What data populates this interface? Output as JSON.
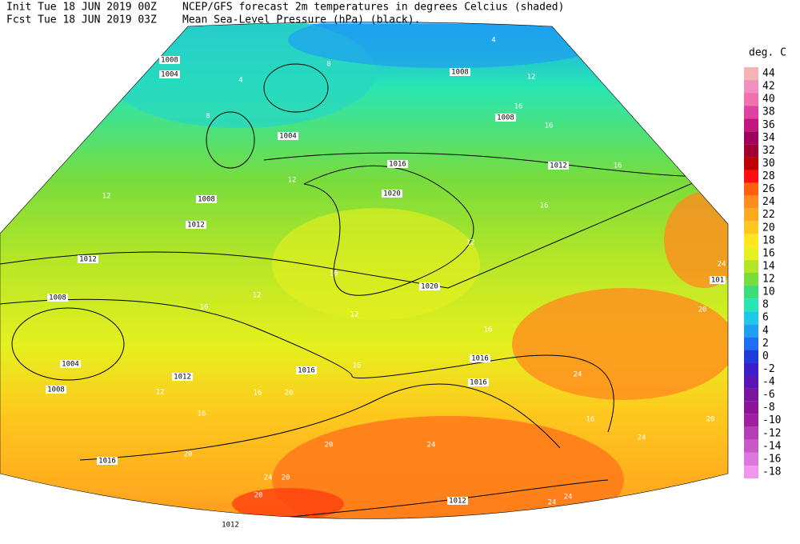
{
  "header": {
    "init": "Init  Tue 18 JUN 2019 00Z",
    "fcst": "Fcst Tue 18 JUN 2019 03Z",
    "line1": "NCEP/GFS forecast 2m temperatures in degrees Celcius (shaded)",
    "line2": "Mean Sea-Level Pressure (hPa) (black)."
  },
  "legend": {
    "title": "deg. C",
    "levels": [
      {
        "value": 44,
        "color": "#f5b4b4"
      },
      {
        "value": 42,
        "color": "#f090c0"
      },
      {
        "value": 40,
        "color": "#f070b0"
      },
      {
        "value": 38,
        "color": "#e040a0"
      },
      {
        "value": 36,
        "color": "#c01880"
      },
      {
        "value": 34,
        "color": "#a00060"
      },
      {
        "value": 32,
        "color": "#a00030"
      },
      {
        "value": 30,
        "color": "#c00000"
      },
      {
        "value": 28,
        "color": "#ff1010"
      },
      {
        "value": 26,
        "color": "#ff6010"
      },
      {
        "value": 24,
        "color": "#ff8c1e"
      },
      {
        "value": 22,
        "color": "#ffaa1e"
      },
      {
        "value": 20,
        "color": "#ffc81e"
      },
      {
        "value": 18,
        "color": "#ffe61e"
      },
      {
        "value": 16,
        "color": "#e6f01e"
      },
      {
        "value": 14,
        "color": "#b4e628"
      },
      {
        "value": 12,
        "color": "#78dc3c"
      },
      {
        "value": 10,
        "color": "#3cdc78"
      },
      {
        "value": 8,
        "color": "#28e6b4"
      },
      {
        "value": 6,
        "color": "#1ec8e6"
      },
      {
        "value": 4,
        "color": "#1ea0f0"
      },
      {
        "value": 2,
        "color": "#1e6ef0"
      },
      {
        "value": 0,
        "color": "#1e3cdc"
      },
      {
        "value": -2,
        "color": "#3c1ec8"
      },
      {
        "value": -4,
        "color": "#5a14b4"
      },
      {
        "value": -6,
        "color": "#7814a0"
      },
      {
        "value": -8,
        "color": "#8c1496"
      },
      {
        "value": -10,
        "color": "#a01ea0"
      },
      {
        "value": -12,
        "color": "#b43cb4"
      },
      {
        "value": -14,
        "color": "#c85ac8"
      },
      {
        "value": -16,
        "color": "#dc78dc"
      },
      {
        "value": -18,
        "color": "#f096f0"
      }
    ]
  },
  "isobar_labels": [
    "1008",
    "1004",
    "1008",
    "1008",
    "1004",
    "1012",
    "1016",
    "1020",
    "1008",
    "1012",
    "1012",
    "1008",
    "1004",
    "1008",
    "1012",
    "1016",
    "1020",
    "1016",
    "1016",
    "1016",
    "1012",
    "1012",
    "101"
  ],
  "temperature_labels": [
    "4",
    "8",
    "4",
    "12",
    "8",
    "16",
    "16",
    "12",
    "16",
    "12",
    "16",
    "12",
    "16",
    "12",
    "16",
    "12",
    "16",
    "16",
    "20",
    "16",
    "12",
    "16",
    "20",
    "24",
    "16",
    "24",
    "20",
    "24",
    "20",
    "24",
    "20",
    "20",
    "24",
    "24",
    "24",
    "20"
  ]
}
